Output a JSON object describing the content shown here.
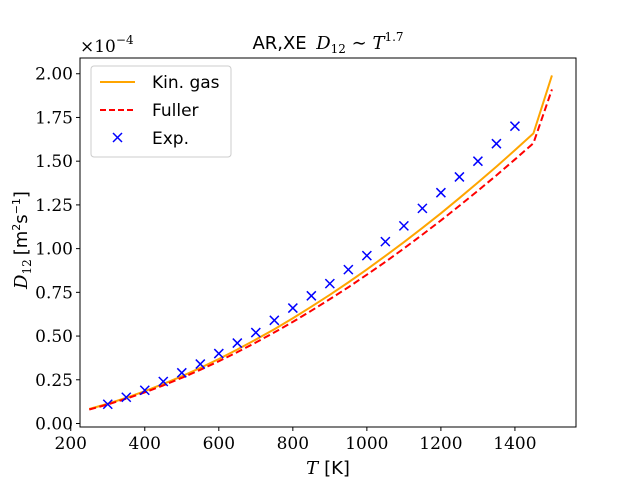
{
  "chart_data": {
    "type": "line",
    "title": {
      "main": "AR,XE",
      "math": "D",
      "math_sub": "12",
      "relation": " ∼ ",
      "var": "T",
      "exp": "1.7"
    },
    "xlabel": {
      "var": "T",
      "unit": "[K]"
    },
    "ylabel": {
      "var": "D",
      "sub": "12",
      "unit_prefix": "[m",
      "unit_sup1": "2",
      "unit_mid": "s",
      "unit_sup2": "−1",
      "unit_suffix": "]"
    },
    "y_offset_text": {
      "base": "×10",
      "exp": "−4"
    },
    "xlim": [
      225,
      1565
    ],
    "ylim": [
      -0.02,
      2.09
    ],
    "x_ticks": [
      200,
      400,
      600,
      800,
      1000,
      1200,
      1400
    ],
    "x_tick_labels": [
      "200",
      "400",
      "600",
      "800",
      "1000",
      "1200",
      "1400"
    ],
    "y_ticks": [
      0.0,
      0.25,
      0.5,
      0.75,
      1.0,
      1.25,
      1.5,
      1.75,
      2.0
    ],
    "y_tick_labels": [
      "0.00",
      "0.25",
      "0.50",
      "0.75",
      "1.00",
      "1.25",
      "1.50",
      "1.75",
      "2.00"
    ],
    "grid": false,
    "legend_position": "top-left",
    "series": [
      {
        "name": "Kin. gas",
        "style": "solid",
        "color": "#ffa500",
        "x": [
          250,
          300,
          350,
          400,
          450,
          500,
          550,
          600,
          650,
          700,
          750,
          800,
          850,
          900,
          950,
          1000,
          1050,
          1100,
          1150,
          1200,
          1250,
          1300,
          1350,
          1400,
          1450,
          1500
        ],
        "values": [
          0.083,
          0.113,
          0.147,
          0.185,
          0.226,
          0.27,
          0.318,
          0.369,
          0.423,
          0.48,
          0.539,
          0.602,
          0.668,
          0.736,
          0.807,
          0.881,
          0.958,
          1.037,
          1.118,
          1.202,
          1.289,
          1.378,
          1.469,
          1.563,
          1.659,
          1.99
        ]
      },
      {
        "name": "Fuller",
        "style": "dashed",
        "color": "#ff0000",
        "x": [
          250,
          300,
          350,
          400,
          450,
          500,
          550,
          600,
          650,
          700,
          750,
          800,
          850,
          900,
          950,
          1000,
          1050,
          1100,
          1150,
          1200,
          1250,
          1300,
          1350,
          1400,
          1450,
          1500
        ],
        "values": [
          0.08,
          0.109,
          0.142,
          0.178,
          0.218,
          0.261,
          0.307,
          0.356,
          0.408,
          0.463,
          0.521,
          0.581,
          0.645,
          0.711,
          0.779,
          0.851,
          0.924,
          1.001,
          1.08,
          1.161,
          1.245,
          1.331,
          1.419,
          1.51,
          1.603,
          1.91
        ]
      },
      {
        "name": "Exp.",
        "style": "markers",
        "marker": "x",
        "color": "#0000ff",
        "x": [
          300,
          350,
          400,
          450,
          500,
          550,
          600,
          650,
          700,
          750,
          800,
          850,
          900,
          950,
          1000,
          1050,
          1100,
          1150,
          1200,
          1250,
          1300,
          1350,
          1400
        ],
        "values": [
          0.11,
          0.15,
          0.19,
          0.24,
          0.29,
          0.34,
          0.4,
          0.46,
          0.52,
          0.59,
          0.66,
          0.73,
          0.8,
          0.88,
          0.96,
          1.04,
          1.13,
          1.23,
          1.32,
          1.41,
          1.5,
          1.6,
          1.7
        ]
      }
    ]
  }
}
